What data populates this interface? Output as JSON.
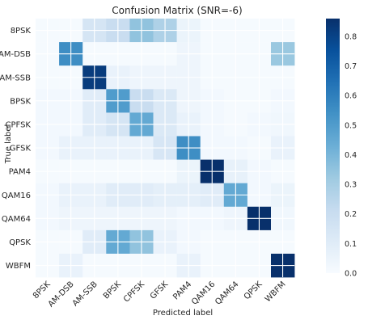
{
  "chart_data": {
    "type": "heatmap",
    "title": "Confusion Matrix (SNR=-6)",
    "xlabel": "Predicted label",
    "ylabel": "True label",
    "categories": [
      "8PSK",
      "AM-DSB",
      "AM-SSB",
      "BPSK",
      "CPFSK",
      "GFSK",
      "PAM4",
      "QAM16",
      "QAM64",
      "QPSK",
      "WBFM"
    ],
    "colormap": "Blues",
    "vmin": 0.0,
    "vmax": 0.86,
    "colorbar_ticks": [
      "0.0",
      "0.1",
      "0.2",
      "0.3",
      "0.4",
      "0.5",
      "0.6",
      "0.7",
      "0.8"
    ],
    "grid": true,
    "values": [
      [
        0.01,
        0.01,
        0.15,
        0.2,
        0.35,
        0.28,
        0.05,
        0.01,
        0.01,
        0.01,
        0.01
      ],
      [
        0.01,
        0.55,
        0.01,
        0.01,
        0.01,
        0.01,
        0.04,
        0.01,
        0.01,
        0.01,
        0.33
      ],
      [
        0.01,
        0.01,
        0.82,
        0.06,
        0.04,
        0.04,
        0.04,
        0.01,
        0.01,
        0.01,
        0.01
      ],
      [
        0.02,
        0.02,
        0.1,
        0.5,
        0.2,
        0.12,
        0.04,
        0.02,
        0.01,
        0.01,
        0.02
      ],
      [
        0.02,
        0.02,
        0.1,
        0.15,
        0.45,
        0.12,
        0.06,
        0.02,
        0.01,
        0.02,
        0.03
      ],
      [
        0.02,
        0.06,
        0.06,
        0.06,
        0.06,
        0.14,
        0.55,
        0.02,
        0.02,
        0.01,
        0.06
      ],
      [
        0.01,
        0.01,
        0.01,
        0.01,
        0.01,
        0.01,
        0.05,
        0.86,
        0.07,
        0.02,
        0.01
      ],
      [
        0.02,
        0.06,
        0.06,
        0.1,
        0.1,
        0.08,
        0.08,
        0.1,
        0.45,
        0.02,
        0.05
      ],
      [
        0.02,
        0.04,
        0.04,
        0.04,
        0.04,
        0.04,
        0.02,
        0.02,
        0.04,
        0.86,
        0.03
      ],
      [
        0.01,
        0.01,
        0.1,
        0.45,
        0.35,
        0.06,
        0.02,
        0.01,
        0.01,
        0.01,
        0.01
      ],
      [
        0.01,
        0.06,
        0.01,
        0.01,
        0.01,
        0.01,
        0.06,
        0.01,
        0.01,
        0.01,
        0.86
      ]
    ]
  }
}
